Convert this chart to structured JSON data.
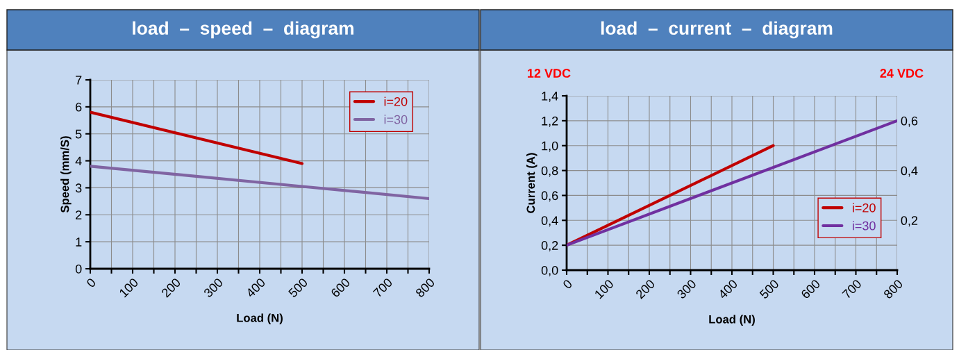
{
  "chart_data": [
    {
      "type": "line",
      "title": "load  –  speed  –  diagram",
      "xlabel": "Load (N)",
      "ylabel": "Speed (mm/S)",
      "xlim": [
        0,
        800
      ],
      "xticks": [
        0,
        {
          "value": 50,
          "label": null
        },
        100,
        {
          "value": 150,
          "label": null
        },
        200,
        {
          "value": 250,
          "label": null
        },
        300,
        {
          "value": 350,
          "label": null
        },
        400,
        {
          "value": 450,
          "label": null
        },
        500,
        {
          "value": 550,
          "label": null
        },
        600,
        {
          "value": 650,
          "label": null
        },
        700,
        {
          "value": 750,
          "label": null
        },
        800
      ],
      "ylim": [
        0,
        7
      ],
      "yticks": [
        0,
        1,
        2,
        3,
        4,
        5,
        6,
        7
      ],
      "grid": true,
      "legend": "top right",
      "series": [
        {
          "name": "i=20",
          "color": "#c00000",
          "x": [
            0,
            500
          ],
          "values": [
            5.8,
            3.9
          ]
        },
        {
          "name": "i=30",
          "color": "#8064a2",
          "x": [
            0,
            500,
            800
          ],
          "values": [
            3.8,
            3.05,
            2.6
          ]
        }
      ]
    },
    {
      "type": "line",
      "title": "load  –  current  –  diagram",
      "xlabel": "Load (N)",
      "ylabel": "Current (A)",
      "xlim": [
        0,
        800
      ],
      "xticks": [
        0,
        {
          "value": 50,
          "label": null
        },
        100,
        {
          "value": 150,
          "label": null
        },
        200,
        {
          "value": 250,
          "label": null
        },
        300,
        {
          "value": 350,
          "label": null
        },
        400,
        {
          "value": 450,
          "label": null
        },
        500,
        {
          "value": 550,
          "label": null
        },
        600,
        {
          "value": 650,
          "label": null
        },
        700,
        {
          "value": 750,
          "label": null
        },
        800
      ],
      "ylim": [
        0,
        1.4
      ],
      "yticks": [
        {
          "value": 0,
          "label": "0,0"
        },
        {
          "value": 0.2,
          "label": "0,2"
        },
        {
          "value": 0.4,
          "label": "0,4"
        },
        {
          "value": 0.6,
          "label": "0,6"
        },
        {
          "value": 0.8,
          "label": "0,8"
        },
        {
          "value": 1.0,
          "label": "1,0"
        },
        {
          "value": 1.2,
          "label": "1,2"
        },
        {
          "value": 1.4,
          "label": "1,4"
        }
      ],
      "y2lim": [
        0,
        0.7
      ],
      "y2ticks": [
        {
          "value": 0.2,
          "label": "0,2"
        },
        {
          "value": 0.4,
          "label": "0,4"
        },
        {
          "value": 0.6,
          "label": "0,6"
        }
      ],
      "grid": true,
      "legend": "lower right",
      "annotations": [
        "12 VDC",
        "24 VDC"
      ],
      "series": [
        {
          "name": "i=20",
          "color": "#c00000",
          "x": [
            0,
            500
          ],
          "values": [
            0.2,
            1.0
          ]
        },
        {
          "name": "i=30",
          "color": "#7030a0",
          "x": [
            0,
            800
          ],
          "values": [
            0.2,
            1.2
          ]
        }
      ]
    }
  ]
}
